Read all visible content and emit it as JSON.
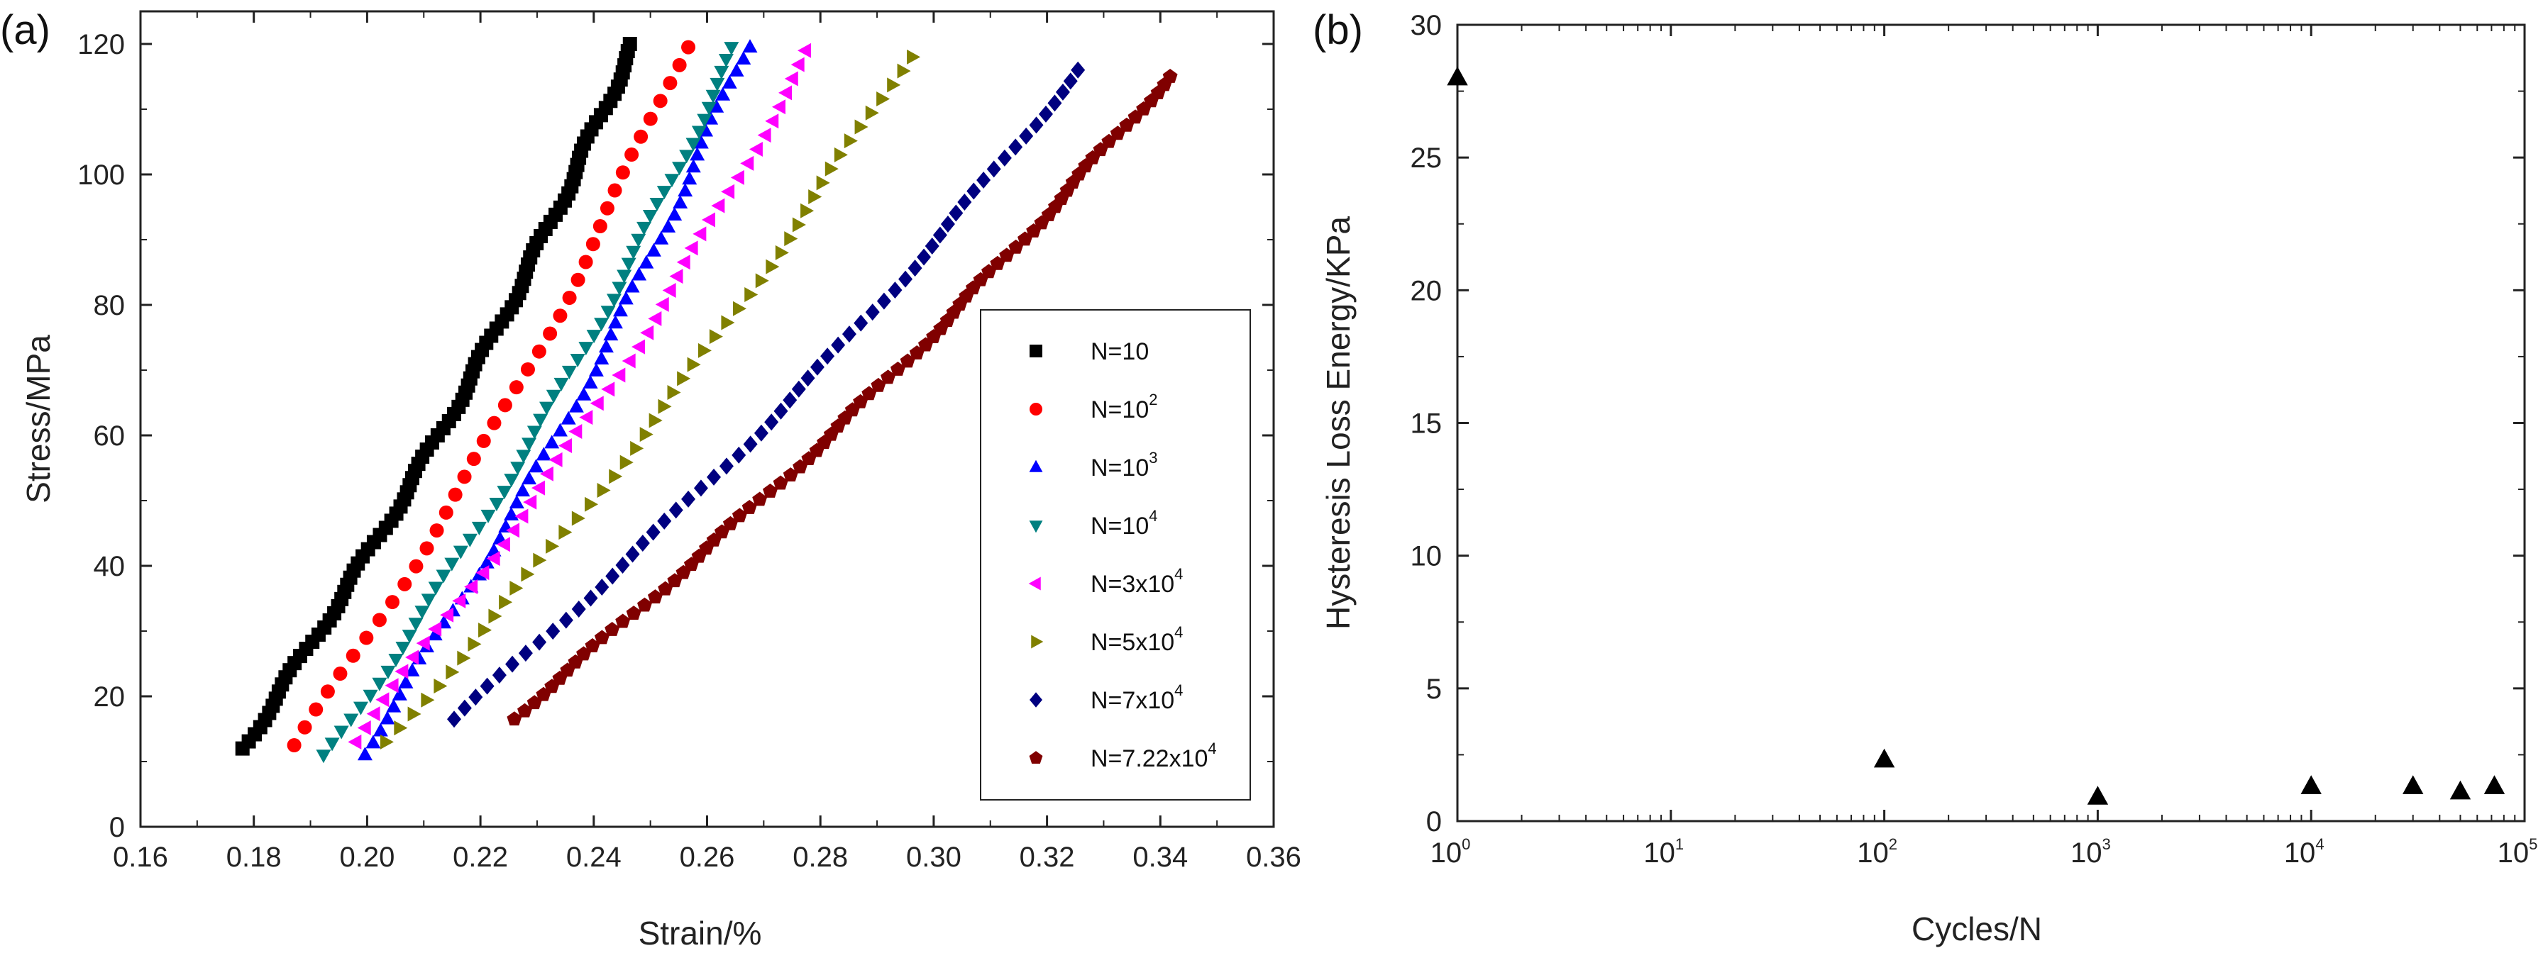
{
  "chart_data": [
    {
      "panel_label": "(a)",
      "type": "scatter",
      "xlabel": "Strain/%",
      "ylabel": "Stress/MPa",
      "xlim": [
        0.16,
        0.36
      ],
      "ylim": [
        0,
        125
      ],
      "xticks": [
        "0.16",
        "0.18",
        "0.20",
        "0.22",
        "0.24",
        "0.26",
        "0.28",
        "0.30",
        "0.32",
        "0.34",
        "0.36"
      ],
      "yticks": [
        "0",
        "20",
        "40",
        "60",
        "80",
        "100",
        "120"
      ],
      "legend_position": "right",
      "series": [
        {
          "name": "N=10",
          "base": "N=10",
          "exp": "",
          "marker": "square",
          "color": "#000000",
          "x0": 0.178,
          "y0": 12,
          "x1": 0.247,
          "y1": 120,
          "bow": 0.004,
          "count": 100
        },
        {
          "name": "N=10^2",
          "base": "N=10",
          "exp": "2",
          "marker": "circle",
          "color": "#ff0000",
          "x0": 0.1875,
          "y0": 12.5,
          "x1": 0.256,
          "y1": 119.5,
          "bow": 0.004,
          "count": 40
        },
        {
          "name": "N=10^3",
          "base": "N=10",
          "exp": "3",
          "marker": "triangle-up",
          "color": "#0000ff",
          "x0": 0.199,
          "y0": 11,
          "x1": 0.267,
          "y1": 119.5,
          "bow": 0.004,
          "count": 60
        },
        {
          "name": "N=10^4",
          "base": "N=10",
          "exp": "4",
          "marker": "triangle-down",
          "color": "#008080",
          "x0": 0.193,
          "y0": 11,
          "x1": 0.265,
          "y1": 119.5,
          "bow": 0.004,
          "count": 60
        },
        {
          "name": "N=3x10^4",
          "base": "N=3x10",
          "exp": "4",
          "marker": "triangle-left",
          "color": "#ff00ff",
          "x0": 0.1975,
          "y0": 13,
          "x1": 0.278,
          "y1": 119,
          "bow": 0.004,
          "count": 50
        },
        {
          "name": "N=5x10^4",
          "base": "N=5x10",
          "exp": "4",
          "marker": "triangle-right",
          "color": "#808000",
          "x0": 0.2035,
          "y0": 13,
          "x1": 0.2955,
          "y1": 118,
          "bow": 0.004,
          "count": 50
        },
        {
          "name": "N=7x10^4",
          "base": "N=7x10",
          "exp": "4",
          "marker": "diamond",
          "color": "#000080",
          "x0": 0.2155,
          "y0": 16.5,
          "x1": 0.3255,
          "y1": 116,
          "bow": 0.005,
          "count": 60
        },
        {
          "name": "N=7.22x10^4",
          "base": "N=7.22x10",
          "exp": "4",
          "marker": "pentagon",
          "color": "#800000",
          "x0": 0.2255,
          "y0": 16.5,
          "x1": 0.3415,
          "y1": 115,
          "bow": 0.005,
          "count": 80
        }
      ]
    },
    {
      "panel_label": "(b)",
      "type": "scatter",
      "xlabel": "Cycles/N",
      "ylabel": "Hysteresis Loss Energy/KPa",
      "xscale": "log",
      "xlim": [
        1,
        100000
      ],
      "ylim": [
        0,
        30
      ],
      "xticks": [
        {
          "base": "10",
          "exp": "0"
        },
        {
          "base": "10",
          "exp": "1"
        },
        {
          "base": "10",
          "exp": "2"
        },
        {
          "base": "10",
          "exp": "3"
        },
        {
          "base": "10",
          "exp": "4"
        },
        {
          "base": "10",
          "exp": "5"
        }
      ],
      "yticks": [
        "0",
        "5",
        "10",
        "15",
        "20",
        "25",
        "30"
      ],
      "marker": "triangle-up",
      "color": "#000000",
      "points": [
        {
          "x": 1,
          "y": 28.0
        },
        {
          "x": 100,
          "y": 2.3
        },
        {
          "x": 1000,
          "y": 0.9
        },
        {
          "x": 10000,
          "y": 1.3
        },
        {
          "x": 30000,
          "y": 1.3
        },
        {
          "x": 50000,
          "y": 1.1
        },
        {
          "x": 72200,
          "y": 1.3
        }
      ]
    }
  ]
}
